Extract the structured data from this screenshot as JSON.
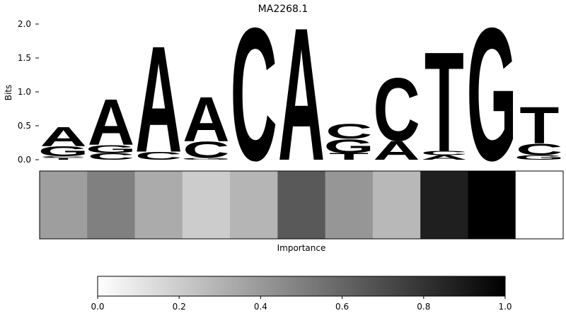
{
  "chart_data": [
    {
      "type": "sequence-logo",
      "title": "MA2268.1",
      "ylabel": "Bits",
      "ylim": [
        0,
        2.0
      ],
      "yticks": [
        "0.0",
        "0.5",
        "1.0",
        "1.5",
        "2.0"
      ],
      "colors": {
        "A": "#4ea64e",
        "C": "#4a4aff",
        "G": "#ffc04d",
        "T": "#ff4d4d"
      },
      "positions": [
        [
          {
            "b": "T",
            "h": 0.03
          },
          {
            "b": "C",
            "h": 0.02
          },
          {
            "b": "G",
            "h": 0.15
          },
          {
            "b": "A",
            "h": 0.29
          }
        ],
        [
          {
            "b": "C",
            "h": 0.1
          },
          {
            "b": "G",
            "h": 0.12
          },
          {
            "b": "A",
            "h": 0.69
          }
        ],
        [
          {
            "b": "C",
            "h": 0.12
          },
          {
            "b": "A",
            "h": 1.6
          }
        ],
        [
          {
            "b": "G",
            "h": 0.03
          },
          {
            "b": "C",
            "h": 0.24
          },
          {
            "b": "A",
            "h": 0.67
          }
        ],
        [
          {
            "b": "C",
            "h": 2.0
          }
        ],
        [
          {
            "b": "A",
            "h": 2.0
          }
        ],
        [
          {
            "b": "T",
            "h": 0.1
          },
          {
            "b": "G",
            "h": 0.21
          },
          {
            "b": "C",
            "h": 0.22
          }
        ],
        [
          {
            "b": "A",
            "h": 0.28
          },
          {
            "b": "C",
            "h": 0.95
          }
        ],
        [
          {
            "b": "A",
            "h": 0.07
          },
          {
            "b": "C",
            "h": 0.06
          },
          {
            "b": "T",
            "h": 1.5
          }
        ],
        [
          {
            "b": "G",
            "h": 2.0
          }
        ],
        [
          {
            "b": "G",
            "h": 0.07
          },
          {
            "b": "C",
            "h": 0.17
          },
          {
            "b": "T",
            "h": 0.55
          }
        ]
      ]
    },
    {
      "type": "heatmap",
      "xlabel": "Importance",
      "values": [
        0.38,
        0.5,
        0.33,
        0.2,
        0.29,
        0.65,
        0.41,
        0.28,
        0.88,
        1.0,
        0.0
      ]
    },
    {
      "type": "colorbar",
      "ticks": [
        "0.0",
        "0.2",
        "0.4",
        "0.6",
        "0.8",
        "1.0"
      ],
      "range": [
        0,
        1
      ]
    }
  ]
}
